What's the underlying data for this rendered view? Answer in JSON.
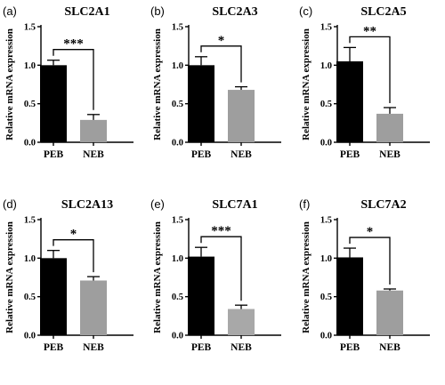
{
  "chart_data": [
    {
      "panel": "(a)",
      "type": "bar",
      "title": "SLC2A1",
      "ylabel": "Relative mRNA expression",
      "categories": [
        "PEB",
        "NEB"
      ],
      "values": [
        1.0,
        0.29
      ],
      "errors": [
        0.065,
        0.07
      ],
      "colors": [
        "#000000",
        "#9e9e9e"
      ],
      "significance": "***",
      "ylim": [
        0,
        1.5
      ],
      "yticks": [
        "0.0",
        "0.5",
        "1.0",
        "1.5"
      ]
    },
    {
      "panel": "(b)",
      "type": "bar",
      "title": "SLC2A3",
      "ylabel": "Relative mRNA expression",
      "categories": [
        "PEB",
        "NEB"
      ],
      "values": [
        1.0,
        0.68
      ],
      "errors": [
        0.11,
        0.04
      ],
      "colors": [
        "#000000",
        "#9e9e9e"
      ],
      "significance": "*",
      "ylim": [
        0,
        1.5
      ],
      "yticks": [
        "0.0",
        "0.5",
        "1.0",
        "1.5"
      ]
    },
    {
      "panel": "(c)",
      "type": "bar",
      "title": "SLC2A5",
      "ylabel": "Relative mRNA expression",
      "categories": [
        "PEB",
        "NEB"
      ],
      "values": [
        1.05,
        0.37
      ],
      "errors": [
        0.18,
        0.08
      ],
      "colors": [
        "#000000",
        "#9e9e9e"
      ],
      "significance": "**",
      "ylim": [
        0,
        1.5
      ],
      "yticks": [
        "0.0",
        "0.5",
        "1.0",
        "1.5"
      ]
    },
    {
      "panel": "(d)",
      "type": "bar",
      "title": "SLC2A13",
      "ylabel": "Relative mRNA expression",
      "categories": [
        "PEB",
        "NEB"
      ],
      "values": [
        1.0,
        0.71
      ],
      "errors": [
        0.1,
        0.05
      ],
      "colors": [
        "#000000",
        "#9e9e9e"
      ],
      "significance": "*",
      "ylim": [
        0,
        1.5
      ],
      "yticks": [
        "0.0",
        "0.5",
        "1.0",
        "1.5"
      ]
    },
    {
      "panel": "(e)",
      "type": "bar",
      "title": "SLC7A1",
      "ylabel": "Relative mRNA expression",
      "categories": [
        "PEB",
        "NEB"
      ],
      "values": [
        1.02,
        0.34
      ],
      "errors": [
        0.12,
        0.05
      ],
      "colors": [
        "#000000",
        "#a8a8a8"
      ],
      "significance": "***",
      "ylim": [
        0,
        1.5
      ],
      "yticks": [
        "0.0",
        "0.5",
        "1.0",
        "1.5"
      ]
    },
    {
      "panel": "(f)",
      "type": "bar",
      "title": "SLC7A2",
      "ylabel": "Relative mRNA expression",
      "categories": [
        "PEB",
        "NEB"
      ],
      "values": [
        1.01,
        0.58
      ],
      "errors": [
        0.12,
        0.02
      ],
      "colors": [
        "#000000",
        "#9e9e9e"
      ],
      "significance": "*",
      "ylim": [
        0,
        1.5
      ],
      "yticks": [
        "0.0",
        "0.5",
        "1.0",
        "1.5"
      ]
    }
  ]
}
